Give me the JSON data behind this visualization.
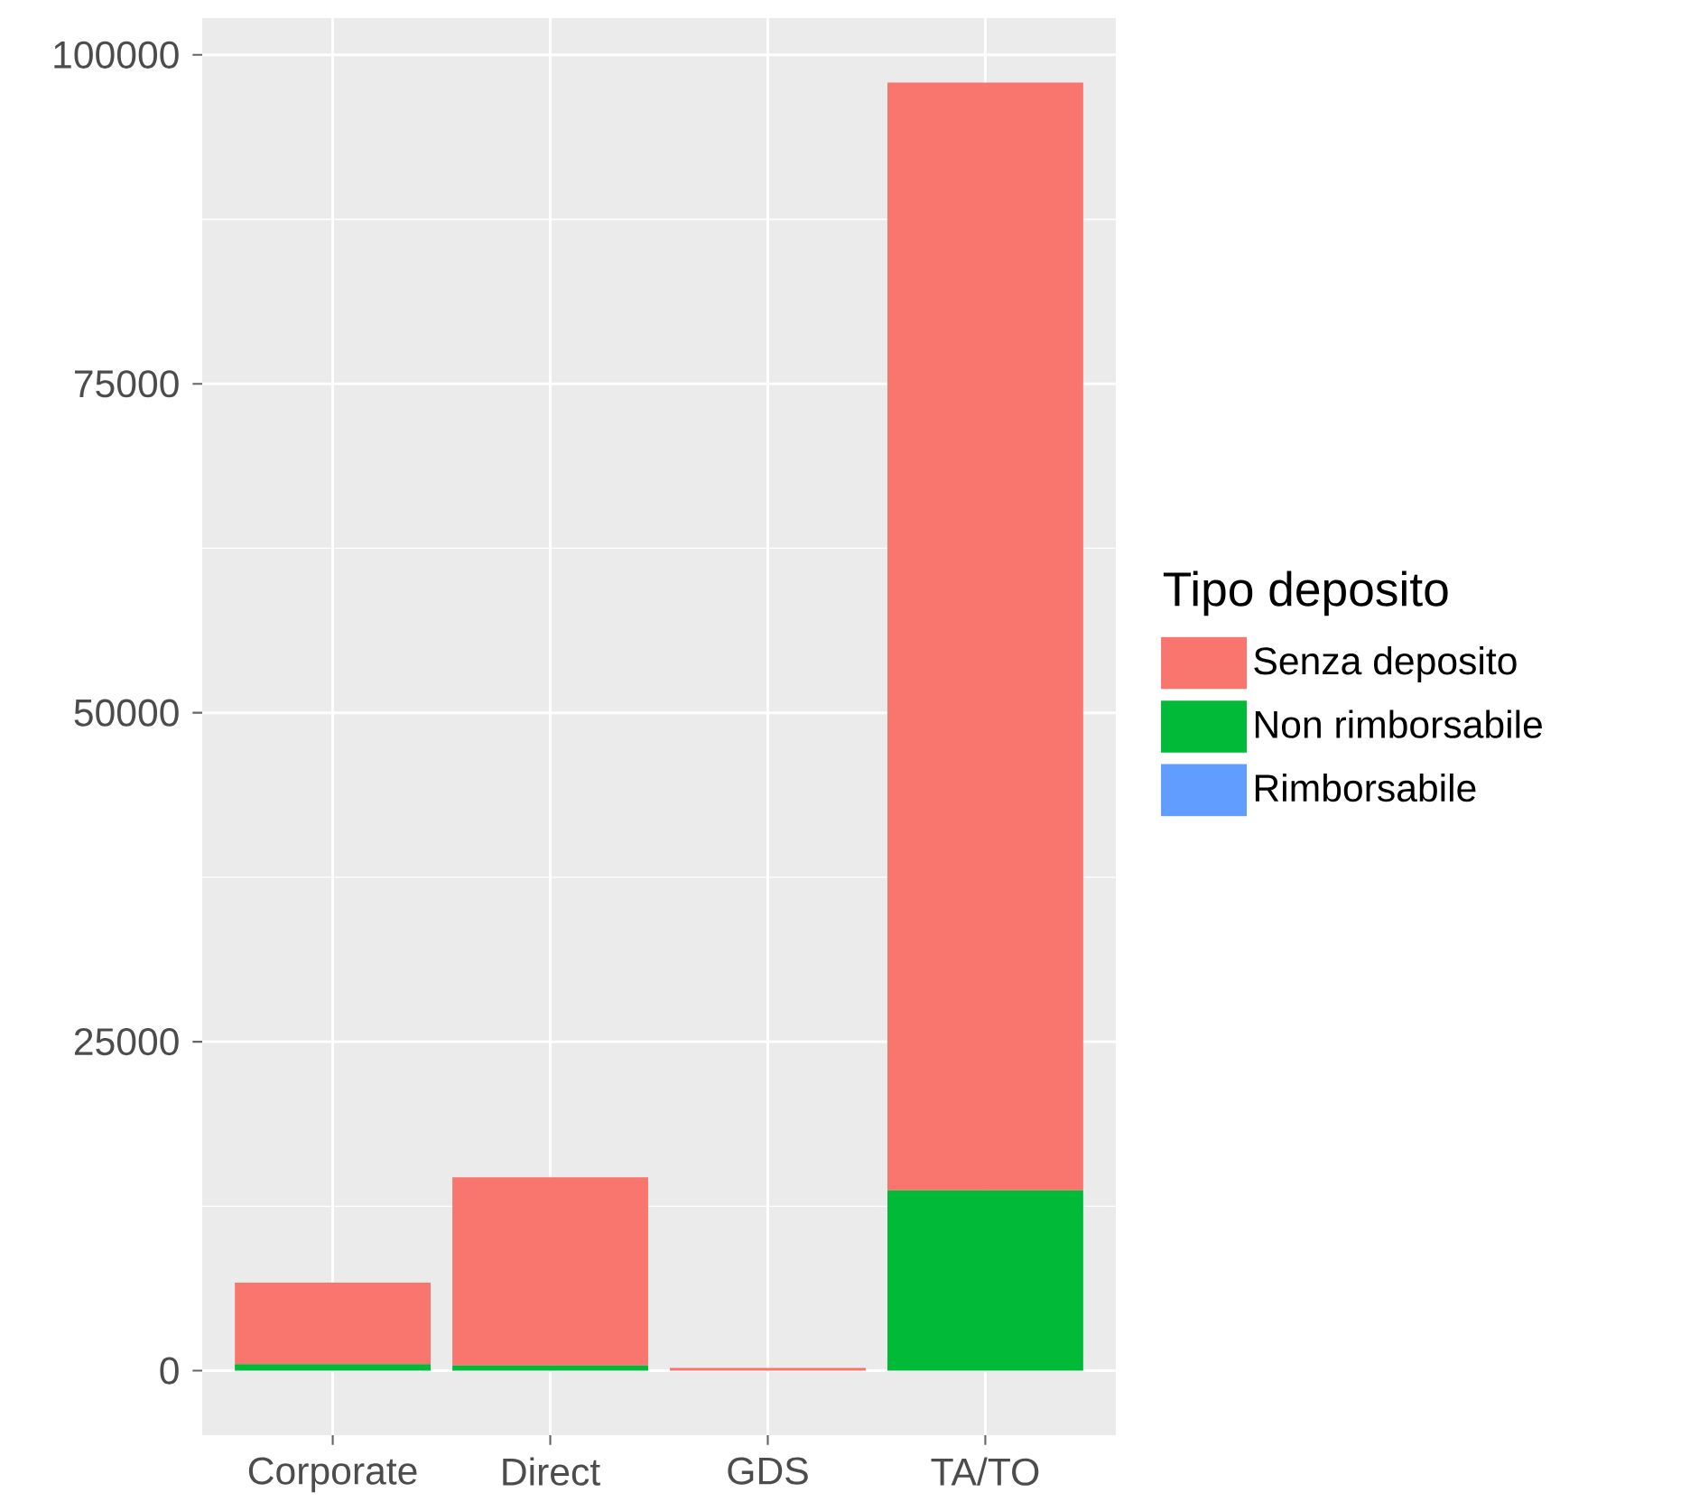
{
  "chart_data": {
    "type": "bar",
    "stacked": true,
    "legend_title": "Tipo deposito",
    "legend": "right",
    "grid": true,
    "categories": [
      "Corporate",
      "Direct",
      "GDS",
      "TA/TO"
    ],
    "series": [
      {
        "name": "Rimborsabile",
        "color": "#619cff",
        "values": [
          null,
          null,
          null,
          null
        ]
      },
      {
        "name": "Non rimborsabile",
        "color": "#00ba38",
        "values": [
          500,
          400,
          0,
          13700
        ]
      },
      {
        "name": "Senza deposito",
        "color": "#f8766d",
        "values": [
          6200,
          14300,
          200,
          84200
        ]
      }
    ],
    "ylim": [
      -4900,
      102800
    ],
    "yticks": [
      0,
      25000,
      50000,
      75000,
      100000
    ]
  }
}
